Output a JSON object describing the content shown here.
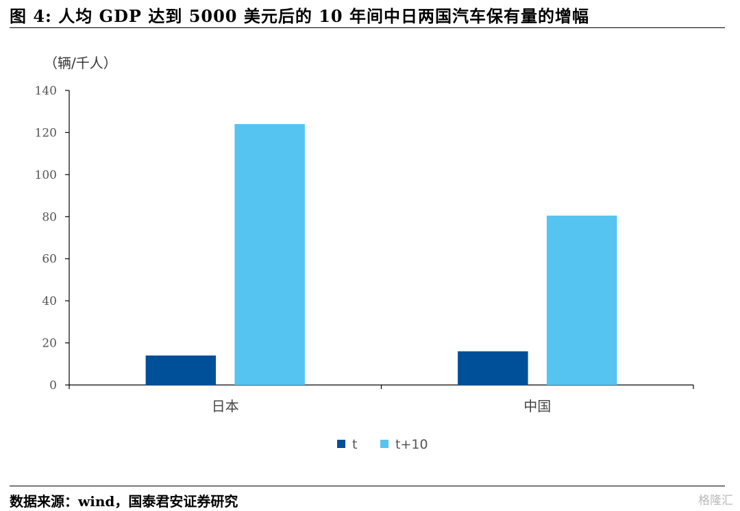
{
  "figure": {
    "title": "图 4:    人均 GDP 达到 5000 美元后的 10 年间中日两国汽车保有量的增幅",
    "source": "数据来源：wind，国泰君安证券研究",
    "watermark": "格隆汇"
  },
  "chart_data": {
    "type": "bar",
    "unit_label": "（辆/千人）",
    "categories": [
      "日本",
      "中国"
    ],
    "series": [
      {
        "name": "t",
        "color": "#004f99",
        "values": [
          14,
          16
        ]
      },
      {
        "name": "t+10",
        "color": "#56c4f0",
        "values": [
          124,
          80.5
        ]
      }
    ],
    "ylim": [
      0,
      140
    ],
    "yticks": [
      0,
      20,
      40,
      60,
      80,
      100,
      120,
      140
    ],
    "grid": false,
    "legend_position": "bottom-center"
  }
}
